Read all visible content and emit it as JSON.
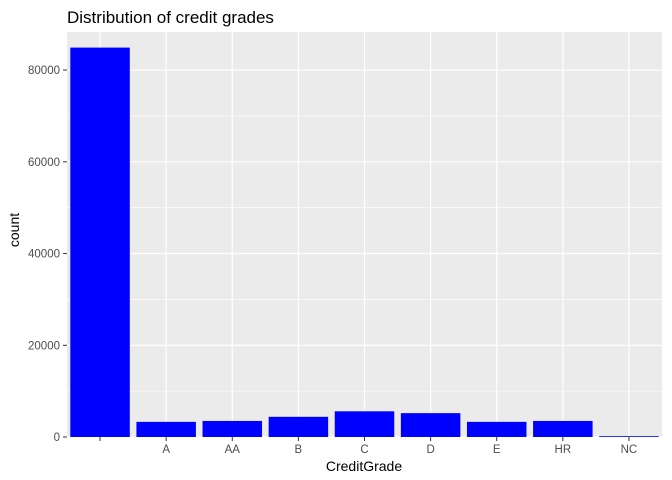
{
  "chart_data": {
    "type": "bar",
    "title": "Distribution of credit grades",
    "xlabel": "CreditGrade",
    "ylabel": "count",
    "categories": [
      "",
      "A",
      "AA",
      "B",
      "C",
      "D",
      "E",
      "HR",
      "NC"
    ],
    "values": [
      84900,
      3300,
      3500,
      4400,
      5600,
      5200,
      3300,
      3500,
      150
    ],
    "ylim": [
      0,
      88300
    ],
    "yticks": [
      0,
      20000,
      40000,
      60000,
      80000
    ],
    "ytick_labels": [
      "0",
      "20000",
      "40000",
      "60000",
      "80000"
    ],
    "grid": true,
    "legend": "none",
    "colors": {
      "bar": "#0000ff",
      "panel_background": "#ebebeb",
      "grid": "#ffffff",
      "tick_text": "#4d4d4d"
    }
  }
}
